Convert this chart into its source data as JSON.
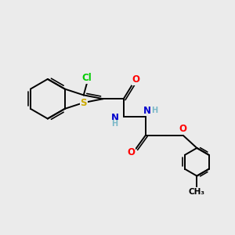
{
  "background_color": "#ebebeb",
  "figsize": [
    3.0,
    3.0
  ],
  "dpi": 100,
  "atom_colors": {
    "C": "#000000",
    "N": "#0000cd",
    "O": "#ff0000",
    "S": "#ccaa00",
    "Cl": "#00cc00",
    "H": "#7ab8c8"
  },
  "bond_color": "#000000",
  "bond_width": 1.4,
  "font_size_atom": 8.5,
  "font_size_small": 7.0,
  "xlim": [
    0,
    10
  ],
  "ylim": [
    0,
    10
  ]
}
